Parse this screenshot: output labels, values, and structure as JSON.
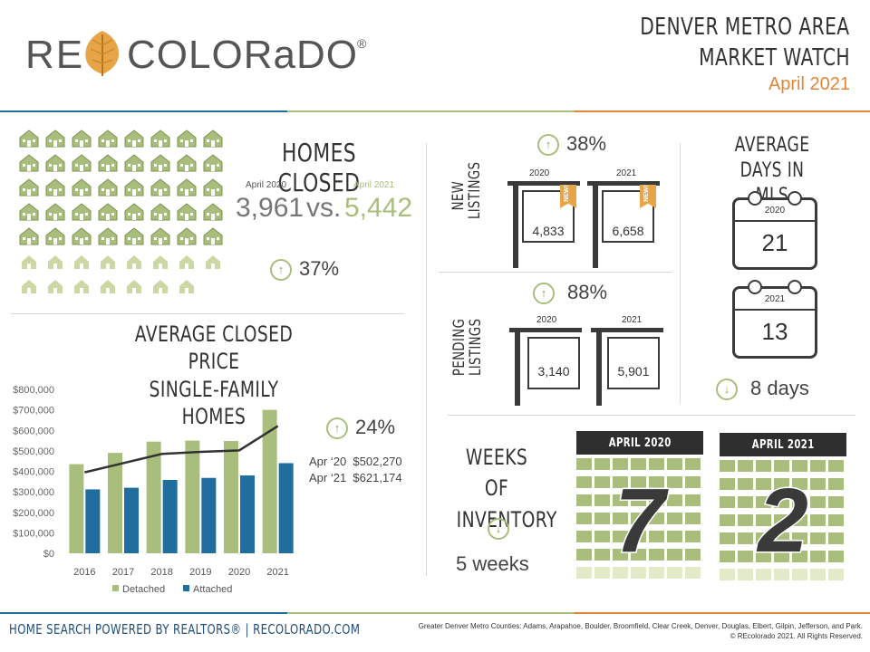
{
  "header": {
    "logo_re": "RE",
    "logo_colorado": "COLORaDO",
    "logo_reg": "®",
    "title_line1": "DENVER METRO AREA",
    "title_line2": "MARKET WATCH",
    "subtitle": "April 2021",
    "colors": {
      "green": "#a9bd7c",
      "orange": "#e0863a",
      "blue": "#1f6e9e"
    }
  },
  "homes_closed": {
    "title": "HOMES CLOSED",
    "label_2020": "April 2020",
    "label_2021": "April 2021",
    "value_2020": "3,961",
    "vs": "vs.",
    "value_2021": "5,442",
    "change": "37%",
    "change_icon": "arrow-up-icon"
  },
  "new_listings": {
    "label_line1": "NEW",
    "label_line2": "LISTINGS",
    "change": "38%",
    "year_2020": "2020",
    "year_2021": "2021",
    "value_2020": "4,833",
    "value_2021": "6,658",
    "badge": "NEW!"
  },
  "pending_listings": {
    "label_line1": "PENDING",
    "label_line2": "LISTINGS",
    "change": "88%",
    "year_2020": "2020",
    "year_2021": "2021",
    "value_2020": "3,140",
    "value_2021": "5,901"
  },
  "days_in_mls": {
    "title_line1": "AVERAGE",
    "title_line2": "DAYS IN MLS",
    "year_2020": "2020",
    "value_2020": "21",
    "year_2021": "2021",
    "value_2021": "13",
    "change": "8 days",
    "change_icon": "arrow-down-icon"
  },
  "avg_price": {
    "title_line1": "AVERAGE CLOSED PRICE",
    "title_line2": "SINGLE-FAMILY HOMES",
    "change": "24%",
    "line1": "Apr ‘20  $502,270",
    "line2": "Apr ‘21  $621,174"
  },
  "chart_data": {
    "type": "bar",
    "categories": [
      "2016",
      "2017",
      "2018",
      "2019",
      "2020",
      "2021"
    ],
    "series": [
      {
        "name": "Detached",
        "values": [
          435000,
          490000,
          545000,
          550000,
          548000,
          700000
        ],
        "color": "#a9bd7c"
      },
      {
        "name": "Attached",
        "values": [
          312000,
          320000,
          358000,
          368000,
          380000,
          440000
        ],
        "color": "#1f6e9e"
      }
    ],
    "line_series": {
      "values": [
        395000,
        440000,
        485000,
        495000,
        502270,
        621174
      ],
      "color": "#333333"
    },
    "ylim": [
      0,
      800000
    ],
    "yticks": [
      "$0",
      "$100,000",
      "$200,000",
      "$300,000",
      "$400,000",
      "$500,000",
      "$600,000",
      "$700,000",
      "$800,000"
    ],
    "legend_position": "bottom"
  },
  "inventory": {
    "title_line1": "WEEKS OF",
    "title_line2": "INVENTORY",
    "change": "5 weeks",
    "change_icon": "arrow-down-icon",
    "cal1_label": "APRIL 2020",
    "cal1_value": "7",
    "cal2_label": "APRIL 2021",
    "cal2_value": "2"
  },
  "footer": {
    "left": "HOME SEARCH POWERED BY REALTORS® | RECOLORADO.COM",
    "right_line1": "Greater Denver Metro Counties: Adams, Arapahoe, Boulder, Broomfield, Clear Creek, Denver, Douglas, Elbert, Gilpin, Jefferson, and Park.",
    "right_line2": "© REcolorado 2021. All Rights Reserved."
  }
}
